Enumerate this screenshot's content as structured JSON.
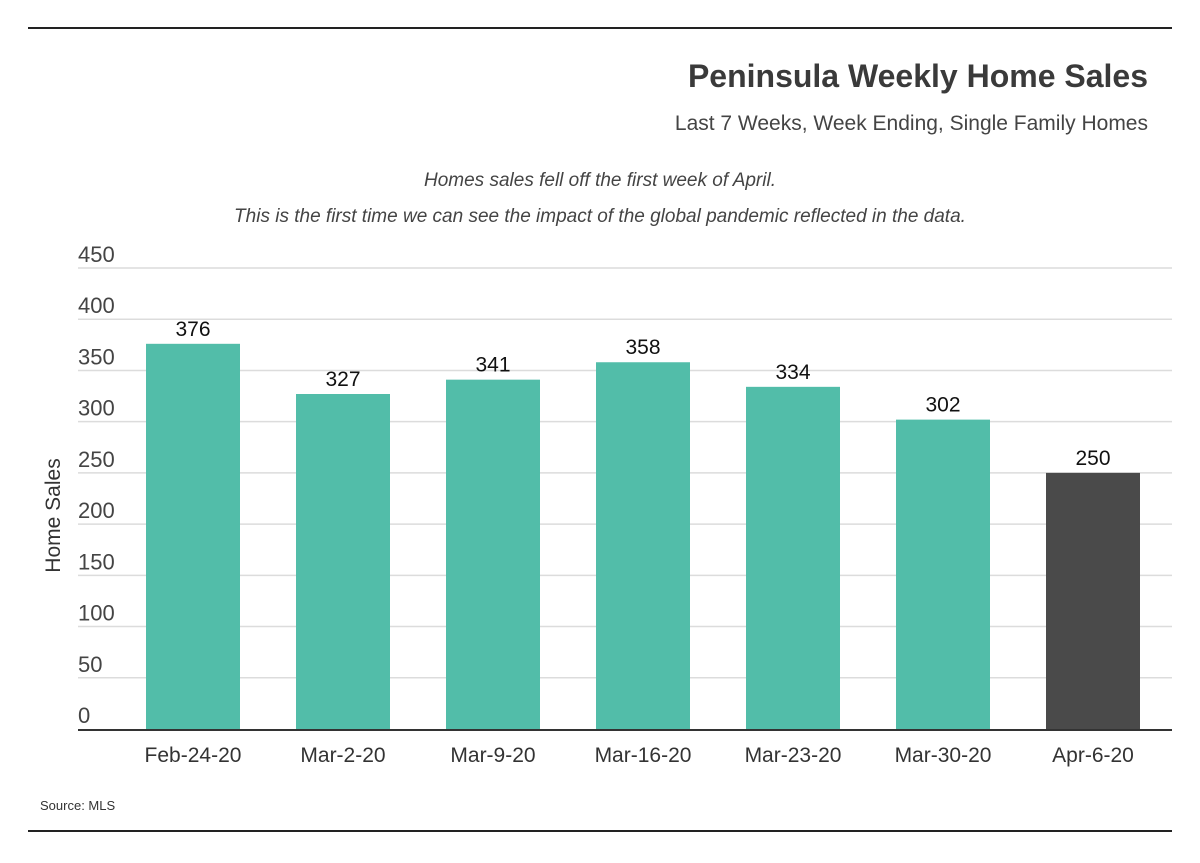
{
  "header": {
    "title": "Peninsula Weekly Home Sales",
    "subtitle": "Last 7 Weeks, Week Ending, Single Family Homes"
  },
  "annotation": {
    "line1": "Homes sales fell off the first week of April.",
    "line2": "This is the first time we can see the impact of the global pandemic reflected in the data."
  },
  "footer": {
    "source": "Source: MLS"
  },
  "colors": {
    "bar": "#52bda9",
    "highlight": "#4a4a4a",
    "grid": "#dcdcdc",
    "axis": "#333333"
  },
  "chart_data": {
    "type": "bar",
    "categories": [
      "Feb-24-20",
      "Mar-2-20",
      "Mar-9-20",
      "Mar-16-20",
      "Mar-23-20",
      "Mar-30-20",
      "Apr-6-20"
    ],
    "values": [
      376,
      327,
      341,
      358,
      334,
      302,
      250
    ],
    "highlight_index": 6,
    "ylabel": "Home Sales",
    "xlabel": "",
    "ylim": [
      0,
      450
    ],
    "yticks": [
      0,
      50,
      100,
      150,
      200,
      250,
      300,
      350,
      400,
      450
    ],
    "grid": true,
    "data_labels": true
  }
}
